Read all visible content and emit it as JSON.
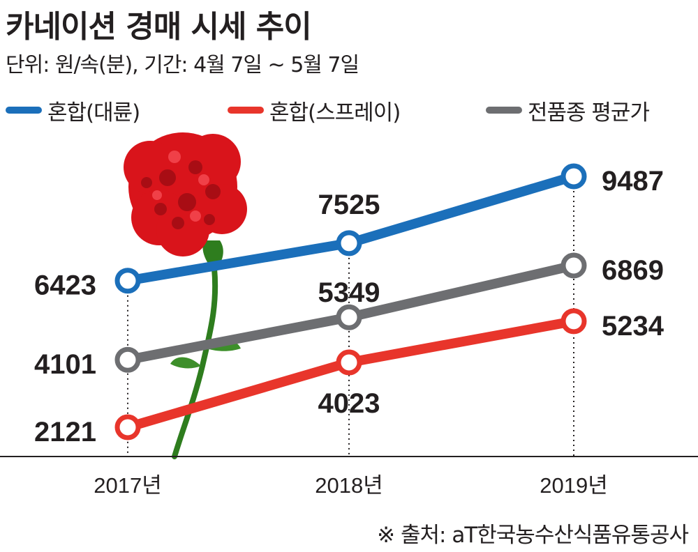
{
  "header": {
    "title": "카네이션 경매 시세 추이",
    "subtitle": "단위: 원/속(분), 기간: 4월 7일 ~ 5월 7일"
  },
  "source": "※ 출처: aT한국농수산식품유통공사",
  "colors": {
    "blue": "#1b6fba",
    "red": "#e8352b",
    "gray": "#6d6e71"
  },
  "chart_data": {
    "type": "line",
    "categories": [
      "2017년",
      "2018년",
      "2019년"
    ],
    "series": [
      {
        "name": "혼합(대륜)",
        "color": "#1b6fba",
        "values": [
          6423,
          7525,
          9487
        ]
      },
      {
        "name": "혼합(스프레이)",
        "color": "#e8352b",
        "values": [
          2121,
          4023,
          5234
        ]
      },
      {
        "name": "전품종 평균가",
        "color": "#6d6e71",
        "values": [
          4101,
          5349,
          6869
        ]
      }
    ],
    "legend_position": "top-left",
    "grid": false
  }
}
